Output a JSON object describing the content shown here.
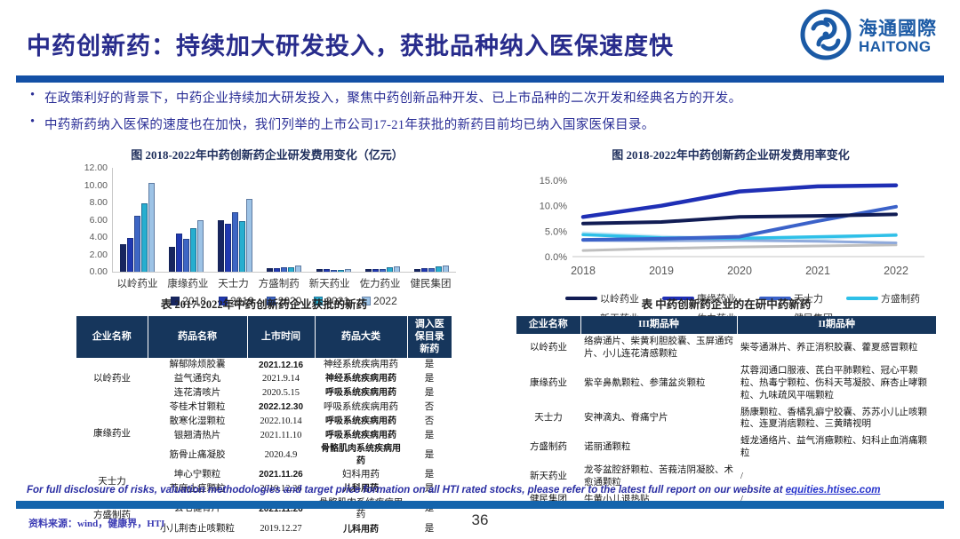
{
  "header": {
    "title": "中药创新药：持续加大研发投入，获批品种纳入医保速度快",
    "logo": {
      "cn": "海通國際",
      "en": "HAITONG"
    }
  },
  "bullets": [
    "在政策利好的背景下，中药企业持续加大研发投入，聚焦中药创新品种开发、已上市品种的二次开发和经典名方的开发。",
    "中药新药纳入医保的速度也在加快，我们列举的上市公司17-21年获批的新药目前均已纳入国家医保目录。"
  ],
  "chart_data": [
    {
      "type": "bar",
      "title": "图  2018-2022年中药创新药企业研发费用变化（亿元）",
      "categories": [
        "以岭药业",
        "康缘药业",
        "天士力",
        "方盛制药",
        "新天药业",
        "佐力药业",
        "健民集团"
      ],
      "series": [
        {
          "name": "2018",
          "color": "#17255f",
          "values": [
            3.2,
            2.9,
            5.9,
            0.45,
            0.35,
            0.3,
            0.3
          ]
        },
        {
          "name": "2019",
          "color": "#2038b0",
          "values": [
            3.9,
            4.4,
            5.5,
            0.42,
            0.28,
            0.32,
            0.42
          ]
        },
        {
          "name": "2020",
          "color": "#3e66c4",
          "values": [
            6.5,
            3.8,
            6.9,
            0.55,
            0.25,
            0.35,
            0.38
          ]
        },
        {
          "name": "2021",
          "color": "#27aecf",
          "values": [
            7.9,
            5.0,
            5.8,
            0.55,
            0.25,
            0.48,
            0.58
          ]
        },
        {
          "name": "2022",
          "color": "#9dc3e6",
          "values": [
            10.3,
            6.0,
            8.4,
            0.75,
            0.28,
            0.65,
            0.75
          ]
        }
      ],
      "ylim": [
        0,
        12
      ],
      "yticks": [
        "0.00",
        "2.00",
        "4.00",
        "6.00",
        "8.00",
        "10.00",
        "12.00"
      ],
      "grid": false,
      "legend_position": "bottom"
    },
    {
      "type": "line",
      "title": "图  2018-2022年中药创新药企业研发费用率变化",
      "x": [
        "2018",
        "2019",
        "2020",
        "2021",
        "2022"
      ],
      "series": [
        {
          "name": "以岭药业",
          "color": "#111c54",
          "width": 4,
          "values": [
            6.5,
            6.8,
            7.8,
            8.0,
            8.3
          ]
        },
        {
          "name": "康缘药业",
          "color": "#1f2fb5",
          "width": 4.5,
          "values": [
            7.8,
            10.0,
            12.8,
            13.8,
            14.0
          ]
        },
        {
          "name": "天士力",
          "color": "#3b62c9",
          "width": 4,
          "values": [
            3.3,
            3.5,
            3.9,
            7.0,
            9.8
          ]
        },
        {
          "name": "方盛制药",
          "color": "#2ec0e8",
          "width": 3.5,
          "values": [
            4.3,
            3.7,
            3.6,
            3.9,
            4.2
          ]
        },
        {
          "name": "新天药业",
          "color": "#8faadc",
          "width": 3,
          "values": [
            3.2,
            3.1,
            3.2,
            3.0,
            2.7
          ]
        },
        {
          "name": "佐力药业",
          "color": "#c9e8f5",
          "width": 3,
          "values": [
            4.7,
            4.0,
            3.5,
            3.4,
            4.4
          ]
        },
        {
          "name": "健民集团",
          "color": "#bfbfbf",
          "width": 3,
          "values": [
            1.2,
            1.6,
            1.9,
            2.1,
            2.3
          ]
        }
      ],
      "ylim": [
        0,
        15
      ],
      "yticks": [
        "0.0%",
        "5.0%",
        "10.0%",
        "15.0%"
      ],
      "grid": false,
      "legend_position": "bottom",
      "legend_rows": [
        4,
        3
      ]
    }
  ],
  "left_table": {
    "title": "表 2017-2022年中药创新药企业获批的新药",
    "headers": [
      "企业名称",
      "药品名称",
      "上市时间",
      "药品大类",
      "调入医保目录\n新药"
    ],
    "groups": [
      {
        "company": "以岭药业",
        "rows": [
          {
            "drug": "解郁除烦胶囊",
            "date": "2021.12.16",
            "category": "神经系统疾病用药",
            "in_list": "是"
          },
          {
            "drug": "益气通窍丸",
            "date": "2021.9.14",
            "category": "神经系统疾病用药",
            "in_list": "是"
          },
          {
            "drug": "连花清咳片",
            "date": "2020.5.15",
            "category": "呼吸系统疾病用药",
            "in_list": "是"
          }
        ]
      },
      {
        "company": "康缘药业",
        "rows": [
          {
            "drug": "苓桂术甘颗粒",
            "date": "2022.12.30",
            "category": "呼吸系统疾病用药",
            "in_list": "否"
          },
          {
            "drug": "散寒化湿颗粒",
            "date": "2022.10.14",
            "category": "呼吸系统疾病用药",
            "in_list": "否"
          },
          {
            "drug": "银翘清热片",
            "date": "2021.11.10",
            "category": "呼吸系统疾病用药",
            "in_list": "是"
          },
          {
            "drug": "筋骨止痛凝胶",
            "date": "2020.4.9",
            "category": "骨骼肌肉系统疾病用药",
            "in_list": "是"
          }
        ]
      },
      {
        "company": "天士力",
        "rows": [
          {
            "drug": "坤心宁颗粒",
            "date": "2021.11.26",
            "category": "妇科用药",
            "in_list": "是"
          },
          {
            "drug": "芍麻止痉颗粒",
            "date": "2019.12.26",
            "category": "儿科用药",
            "in_list": "是"
          }
        ]
      },
      {
        "company": "方盛制药",
        "rows": [
          {
            "drug": "玄七健骨片",
            "date": "2021.11.26",
            "category": "骨骼肌肉系统疾病用药",
            "in_list": "是"
          },
          {
            "drug": "小儿荆杏止咳颗粒",
            "date": "2019.12.27",
            "category": "儿科用药",
            "in_list": "是"
          }
        ]
      }
    ]
  },
  "right_table": {
    "title": "表 中药创新药企业的在研中药新药",
    "headers": [
      "企业名称",
      "III期品种",
      "II期品种"
    ],
    "rows": [
      {
        "company": "以岭药业",
        "phase3": "络痹通片、柴黄利胆胶囊、玉屏通窍片、小儿连花清感颗粒",
        "phase2": "柴苓通淋片、养正消积胶囊、藿夏感冒颗粒"
      },
      {
        "company": "康缘药业",
        "phase3": "紫辛鼻鼽颗粒、参蒲盆炎颗粒",
        "phase2": "苁蓉润通口服液、芪白平肺颗粒、冠心平颗粒、热毒宁颗粒、伤科天芎凝胶、麻杏止哮颗粒、九味疏风平喘颗粒"
      },
      {
        "company": "天士力",
        "phase3": "安神滴丸、脊痛宁片",
        "phase2": "肠康颗粒、香橘乳癖宁胶囊、苏苏小儿止咳颗粒、连夏消痞颗粒、三黄睛视明"
      },
      {
        "company": "方盛制药",
        "phase3": "诺丽通颗粒",
        "phase2": "蛭龙通络片、益气消癥颗粒、妇科止血消痛颗粒"
      },
      {
        "company": "新天药业",
        "phase3": "龙苓盆腔舒颗粒、苦莪洁阴凝胶、术愈通颗粒",
        "phase2": "/"
      },
      {
        "company": "健民集团",
        "phase3": "牛黄小儿退热贴",
        "phase2": "/"
      }
    ]
  },
  "footer": {
    "disclosure_text": "For full disclosure of risks, valuation methodologies and target price formation on all HTI rated stocks, please refer to the latest full report on our website at ",
    "disclosure_link": "equities.htisec.com",
    "source": "资料来源：wind，健康界，HTI",
    "page_number": "36"
  },
  "colors": {
    "title_text": "#282c8c",
    "header_rule": "#1350a6",
    "footer_rule": "#1464ac",
    "logo_blue": "#1b5aa5",
    "table_header_bg": "#16365c"
  }
}
